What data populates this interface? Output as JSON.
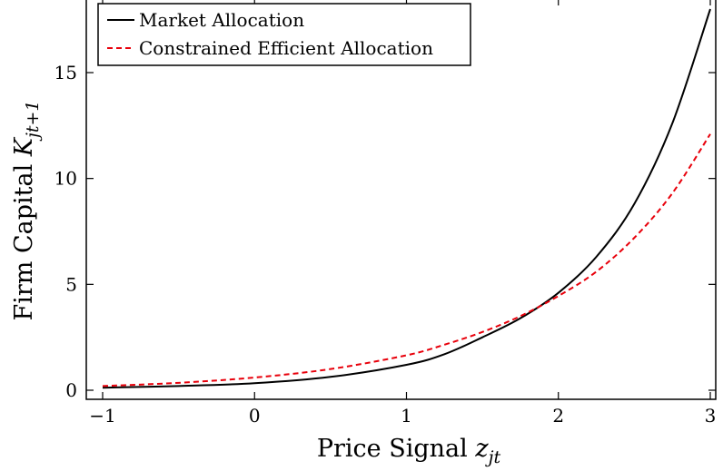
{
  "chart_data": {
    "type": "line",
    "xlabel": "Price Signal",
    "xlabel_math": "z",
    "xlabel_sub": "jt",
    "ylabel": "Firm Capital",
    "ylabel_math": "K",
    "ylabel_sub": "jt+1",
    "xlim": [
      -1,
      3
    ],
    "ylim": [
      0,
      18
    ],
    "xticks": [
      -1,
      0,
      1,
      2,
      3
    ],
    "xtick_labels": [
      "−1",
      "0",
      "1",
      "2",
      "3"
    ],
    "yticks": [
      0,
      5,
      10,
      15
    ],
    "ytick_labels": [
      "0",
      "5",
      "10",
      "15"
    ],
    "grid": false,
    "legend_position": "top-left",
    "series": [
      {
        "name": "Market Allocation",
        "color": "#000000",
        "style": "solid",
        "x": [
          -1,
          -0.5,
          0,
          0.5,
          1,
          1.25,
          1.5,
          1.75,
          2,
          2.25,
          2.5,
          2.75,
          3
        ],
        "y": [
          0.12,
          0.2,
          0.33,
          0.63,
          1.2,
          1.7,
          2.5,
          3.4,
          4.6,
          6.3,
          8.8,
          12.6,
          18.0
        ]
      },
      {
        "name": "Constrained Efficient Allocation",
        "color": "#e8000b",
        "style": "dashed",
        "x": [
          -1,
          -0.5,
          0,
          0.5,
          1,
          1.25,
          1.5,
          1.75,
          2,
          2.25,
          2.5,
          2.75,
          3
        ],
        "y": [
          0.2,
          0.35,
          0.6,
          1.0,
          1.65,
          2.15,
          2.75,
          3.5,
          4.45,
          5.6,
          7.2,
          9.3,
          12.1
        ]
      }
    ]
  }
}
